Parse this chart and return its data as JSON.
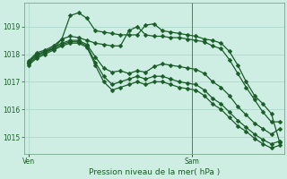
{
  "xlabel": "Pression niveau de la mer( hPa )",
  "background_color": "#ceeee4",
  "grid_color": "#aad4c8",
  "line_color": "#1a5c28",
  "yticks": [
    1015,
    1016,
    1017,
    1018,
    1019
  ],
  "ylim": [
    1014.4,
    1019.85
  ],
  "xlim": [
    -0.5,
    30.5
  ],
  "ven_x": 0,
  "sam_x": 19.5,
  "vline_x": 19.5,
  "series_x": [
    [
      0,
      1,
      2,
      3,
      4,
      5,
      6,
      7,
      8,
      9,
      10,
      11,
      12,
      13,
      14,
      15,
      16,
      17,
      18,
      19,
      20,
      21,
      22,
      23,
      24,
      25,
      26,
      27,
      28,
      29,
      30
    ],
    [
      0,
      1,
      2,
      3,
      4,
      5,
      6,
      7,
      8,
      9,
      10,
      11,
      12,
      13,
      14,
      15,
      16,
      17,
      18,
      19,
      20,
      21,
      22,
      23,
      24,
      25,
      26,
      27,
      28,
      29,
      30
    ],
    [
      0,
      1,
      2,
      3,
      4,
      5,
      6,
      7,
      8,
      9,
      10,
      11,
      12,
      13,
      14,
      15,
      16,
      17,
      18,
      19,
      20,
      21,
      22,
      23,
      24,
      25,
      26,
      27,
      28,
      29,
      30
    ],
    [
      0,
      1,
      2,
      3,
      4,
      5,
      6,
      7,
      8,
      9,
      10,
      11,
      12,
      13,
      14,
      15,
      16,
      17,
      18,
      19,
      20,
      21,
      22,
      23,
      24,
      25,
      26,
      27,
      28,
      29,
      30
    ],
    [
      0,
      1,
      2,
      3,
      4,
      5,
      6,
      7,
      8,
      9,
      10,
      11,
      12,
      13,
      14,
      15,
      16,
      17,
      18,
      19,
      20,
      21,
      22,
      23,
      24,
      25,
      26,
      27,
      28,
      29,
      30
    ]
  ],
  "series_y": [
    [
      1017.7,
      1018.0,
      1018.1,
      1018.2,
      1018.55,
      1019.4,
      1019.5,
      1019.3,
      1018.85,
      1018.8,
      1018.75,
      1018.7,
      1018.7,
      1018.7,
      1019.05,
      1019.1,
      1018.85,
      1018.8,
      1018.75,
      1018.7,
      1018.65,
      1018.55,
      1018.5,
      1018.4,
      1018.1,
      1017.6,
      1017.0,
      1016.5,
      1016.2,
      1015.85,
      1014.8
    ],
    [
      1017.75,
      1018.05,
      1018.15,
      1018.3,
      1018.55,
      1018.65,
      1018.6,
      1018.5,
      1018.4,
      1018.35,
      1018.3,
      1018.3,
      1018.85,
      1019.0,
      1018.7,
      1018.65,
      1018.65,
      1018.6,
      1018.6,
      1018.55,
      1018.5,
      1018.45,
      1018.3,
      1018.2,
      1017.8,
      1017.3,
      1016.8,
      1016.35,
      1015.9,
      1015.55,
      1015.55
    ],
    [
      1017.7,
      1017.95,
      1018.1,
      1018.25,
      1018.4,
      1018.5,
      1018.5,
      1018.35,
      1017.9,
      1017.5,
      1017.35,
      1017.4,
      1017.3,
      1017.4,
      1017.35,
      1017.55,
      1017.65,
      1017.6,
      1017.55,
      1017.5,
      1017.45,
      1017.3,
      1017.0,
      1016.8,
      1016.5,
      1016.1,
      1015.8,
      1015.5,
      1015.3,
      1015.1,
      1015.3
    ],
    [
      1017.65,
      1017.9,
      1018.05,
      1018.2,
      1018.35,
      1018.45,
      1018.45,
      1018.3,
      1017.7,
      1017.2,
      1016.9,
      1017.0,
      1017.1,
      1017.2,
      1017.1,
      1017.2,
      1017.2,
      1017.1,
      1017.0,
      1016.95,
      1016.9,
      1016.7,
      1016.4,
      1016.2,
      1015.9,
      1015.6,
      1015.35,
      1015.1,
      1014.9,
      1014.75,
      1014.85
    ],
    [
      1017.6,
      1017.85,
      1018.0,
      1018.15,
      1018.3,
      1018.4,
      1018.4,
      1018.25,
      1017.6,
      1017.0,
      1016.7,
      1016.8,
      1016.9,
      1017.0,
      1016.9,
      1017.0,
      1017.0,
      1016.9,
      1016.8,
      1016.75,
      1016.7,
      1016.5,
      1016.2,
      1016.0,
      1015.7,
      1015.4,
      1015.2,
      1014.95,
      1014.75,
      1014.6,
      1014.7
    ]
  ],
  "marker_every": [
    1,
    1,
    1,
    1,
    1
  ]
}
